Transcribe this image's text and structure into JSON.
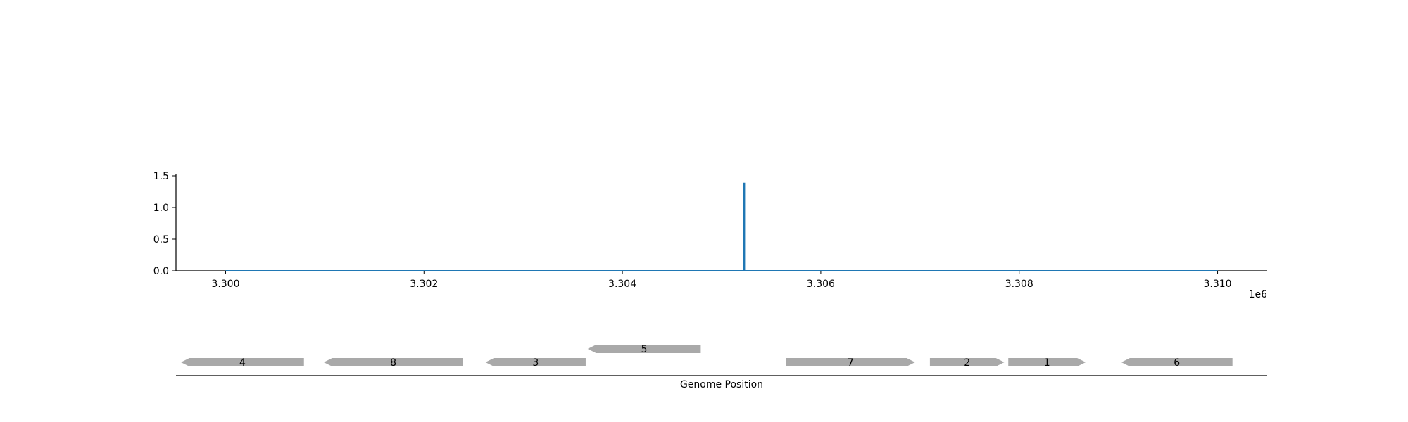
{
  "chart_data": {
    "type": "line",
    "title": "",
    "xlabel": "Genome Position",
    "ylabel": "",
    "x_offset_label": "1e6",
    "xlim": [
      3299500,
      3310500
    ],
    "ylim": [
      0,
      1.5
    ],
    "x_ticks": [
      3300000,
      3302000,
      3304000,
      3306000,
      3308000,
      3310000
    ],
    "x_tick_labels": [
      "3.300",
      "3.302",
      "3.304",
      "3.306",
      "3.308",
      "3.310"
    ],
    "y_ticks": [
      0,
      0.5,
      1.0,
      1.5
    ],
    "y_tick_labels": [
      "0.0",
      "0.5",
      "1.0",
      "1.5"
    ],
    "grid": false,
    "series": [
      {
        "color": "#1f77b4",
        "points": [
          [
            3300000,
            0
          ],
          [
            3305220,
            0
          ],
          [
            3305220,
            1.38
          ],
          [
            3305230,
            1.38
          ],
          [
            3305230,
            0
          ],
          [
            3310000,
            0
          ]
        ]
      }
    ],
    "gene_track": {
      "color": "#a9a9a9",
      "genes": [
        {
          "label": "4",
          "start": 3299550,
          "end": 3300790,
          "strand": -1,
          "level": 0
        },
        {
          "label": "8",
          "start": 3300990,
          "end": 3302390,
          "strand": -1,
          "level": 0
        },
        {
          "label": "3",
          "start": 3302620,
          "end": 3303630,
          "strand": -1,
          "level": 0
        },
        {
          "label": "5",
          "start": 3303650,
          "end": 3304790,
          "strand": -1,
          "level": 1
        },
        {
          "label": "7",
          "start": 3305650,
          "end": 3306950,
          "strand": 1,
          "level": 0
        },
        {
          "label": "2",
          "start": 3307100,
          "end": 3307850,
          "strand": 1,
          "level": 0
        },
        {
          "label": "1",
          "start": 3307890,
          "end": 3308670,
          "strand": 1,
          "level": 0
        },
        {
          "label": "6",
          "start": 3309030,
          "end": 3310150,
          "strand": -1,
          "level": 0
        }
      ]
    }
  }
}
